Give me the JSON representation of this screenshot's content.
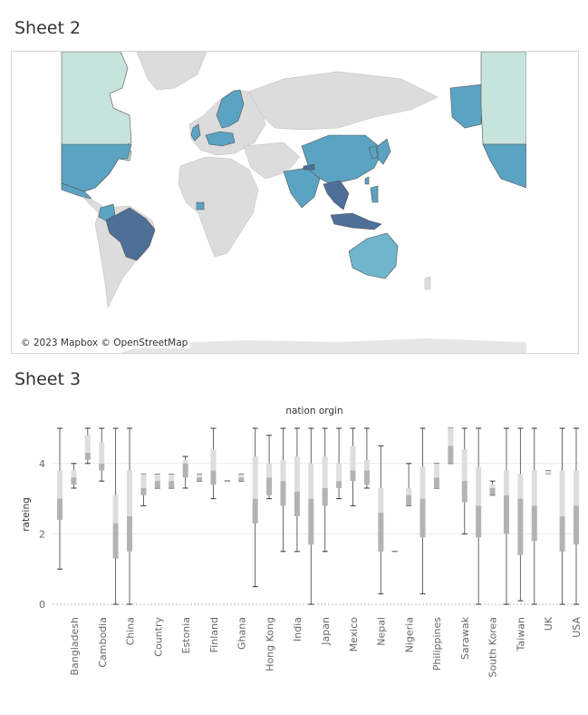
{
  "sheet2": {
    "title": "Sheet 2",
    "attribution": "© 2023 Mapbox © OpenStreetMap"
  },
  "sheet3": {
    "title": "Sheet 3"
  },
  "colors": {
    "land": "#dcdcdc",
    "low": "#c6e3dc",
    "mid": "#5ba3c2",
    "high": "#4d6f98",
    "box_dark": "#b3b3b3",
    "box_light": "#dedede"
  },
  "chart_data": {
    "type": "boxplot",
    "title": "nation orgin",
    "ylabel": "rateing",
    "ylim": [
      0,
      5
    ],
    "yticks": [
      0,
      2,
      4
    ],
    "categories": [
      "Bangladesh",
      "Cambodia",
      "China",
      "Country",
      "Estonia",
      "Finland",
      "Ghana",
      "Hong Kong",
      "India",
      "Japan",
      "Mexico",
      "Nepal",
      "Nigeria",
      "Philippines",
      "Sarawak",
      "South Korea",
      "Taiwan",
      "UK",
      "USA"
    ],
    "boxes": [
      {
        "wmin": 1.0,
        "q1": 2.4,
        "med": 3.0,
        "q3": 3.8,
        "wmax": 5.0
      },
      {
        "wmin": 3.3,
        "q1": 3.4,
        "med": 3.6,
        "q3": 3.8,
        "wmax": 4.0
      },
      {
        "wmin": 4.0,
        "q1": 4.1,
        "med": 4.3,
        "q3": 4.8,
        "wmax": 5.0
      },
      {
        "wmin": 3.5,
        "q1": 3.8,
        "med": 4.0,
        "q3": 4.6,
        "wmax": 5.0
      },
      {
        "wmin": 0.0,
        "q1": 1.3,
        "med": 2.3,
        "q3": 3.1,
        "wmax": 5.0
      },
      {
        "wmin": 0.0,
        "q1": 1.5,
        "med": 2.5,
        "q3": 3.8,
        "wmax": 5.0
      },
      {
        "wmin": 2.8,
        "q1": 3.1,
        "med": 3.3,
        "q3": 3.7,
        "wmax": 3.7
      },
      {
        "wmin": 3.3,
        "q1": 3.3,
        "med": 3.5,
        "q3": 3.7,
        "wmax": 3.7
      },
      {
        "wmin": 3.3,
        "q1": 3.3,
        "med": 3.5,
        "q3": 3.7,
        "wmax": 3.7
      },
      {
        "wmin": 3.3,
        "q1": 3.6,
        "med": 4.0,
        "q3": 4.1,
        "wmax": 4.2
      },
      {
        "wmin": 3.5,
        "q1": 3.5,
        "med": 3.6,
        "q3": 3.7,
        "wmax": 3.7
      },
      {
        "wmin": 3.0,
        "q1": 3.4,
        "med": 3.8,
        "q3": 4.4,
        "wmax": 5.0
      },
      {
        "wmin": 3.5,
        "q1": 3.5,
        "med": 3.5,
        "q3": 3.5,
        "wmax": 3.5
      },
      {
        "wmin": 3.5,
        "q1": 3.5,
        "med": 3.6,
        "q3": 3.7,
        "wmax": 3.7
      },
      {
        "wmin": 0.5,
        "q1": 2.3,
        "med": 3.0,
        "q3": 4.2,
        "wmax": 5.0
      },
      {
        "wmin": 3.0,
        "q1": 3.1,
        "med": 3.6,
        "q3": 4.0,
        "wmax": 4.8
      },
      {
        "wmin": 1.5,
        "q1": 2.8,
        "med": 3.5,
        "q3": 4.1,
        "wmax": 5.0
      },
      {
        "wmin": 1.5,
        "q1": 2.5,
        "med": 3.2,
        "q3": 4.2,
        "wmax": 5.0
      },
      {
        "wmin": 0.0,
        "q1": 1.7,
        "med": 3.0,
        "q3": 4.0,
        "wmax": 5.0
      },
      {
        "wmin": 1.5,
        "q1": 2.8,
        "med": 3.3,
        "q3": 4.2,
        "wmax": 5.0
      },
      {
        "wmin": 3.0,
        "q1": 3.3,
        "med": 3.5,
        "q3": 4.0,
        "wmax": 5.0
      },
      {
        "wmin": 2.8,
        "q1": 3.5,
        "med": 3.8,
        "q3": 4.5,
        "wmax": 5.0
      },
      {
        "wmin": 3.3,
        "q1": 3.4,
        "med": 3.8,
        "q3": 4.1,
        "wmax": 5.0
      },
      {
        "wmin": 0.3,
        "q1": 1.5,
        "med": 2.6,
        "q3": 3.3,
        "wmax": 4.5
      },
      {
        "wmin": 1.5,
        "q1": 1.5,
        "med": 1.5,
        "q3": 1.5,
        "wmax": 1.5
      },
      {
        "wmin": 2.8,
        "q1": 2.8,
        "med": 3.1,
        "q3": 3.3,
        "wmax": 4.0
      },
      {
        "wmin": 0.3,
        "q1": 1.9,
        "med": 3.0,
        "q3": 3.9,
        "wmax": 5.0
      },
      {
        "wmin": 3.3,
        "q1": 3.3,
        "med": 3.6,
        "q3": 4.0,
        "wmax": 4.0
      },
      {
        "wmin": 4.0,
        "q1": 4.0,
        "med": 4.5,
        "q3": 5.0,
        "wmax": 5.0
      },
      {
        "wmin": 2.0,
        "q1": 2.9,
        "med": 3.5,
        "q3": 4.4,
        "wmax": 5.0
      },
      {
        "wmin": 0.0,
        "q1": 1.9,
        "med": 2.8,
        "q3": 3.9,
        "wmax": 5.0
      },
      {
        "wmin": 3.1,
        "q1": 3.1,
        "med": 3.3,
        "q3": 3.4,
        "wmax": 3.5
      },
      {
        "wmin": 0.0,
        "q1": 2.0,
        "med": 3.1,
        "q3": 3.8,
        "wmax": 5.0
      },
      {
        "wmin": 0.1,
        "q1": 1.4,
        "med": 3.0,
        "q3": 3.7,
        "wmax": 5.0
      },
      {
        "wmin": 0.0,
        "q1": 1.8,
        "med": 2.8,
        "q3": 3.8,
        "wmax": 5.0
      },
      {
        "wmin": 3.7,
        "q1": 3.7,
        "med": 3.7,
        "q3": 3.8,
        "wmax": 3.8
      },
      {
        "wmin": 0.0,
        "q1": 1.5,
        "med": 2.5,
        "q3": 3.8,
        "wmax": 5.0
      },
      {
        "wmin": 0.0,
        "q1": 1.7,
        "med": 2.8,
        "q3": 3.8,
        "wmax": 5.0
      }
    ]
  }
}
